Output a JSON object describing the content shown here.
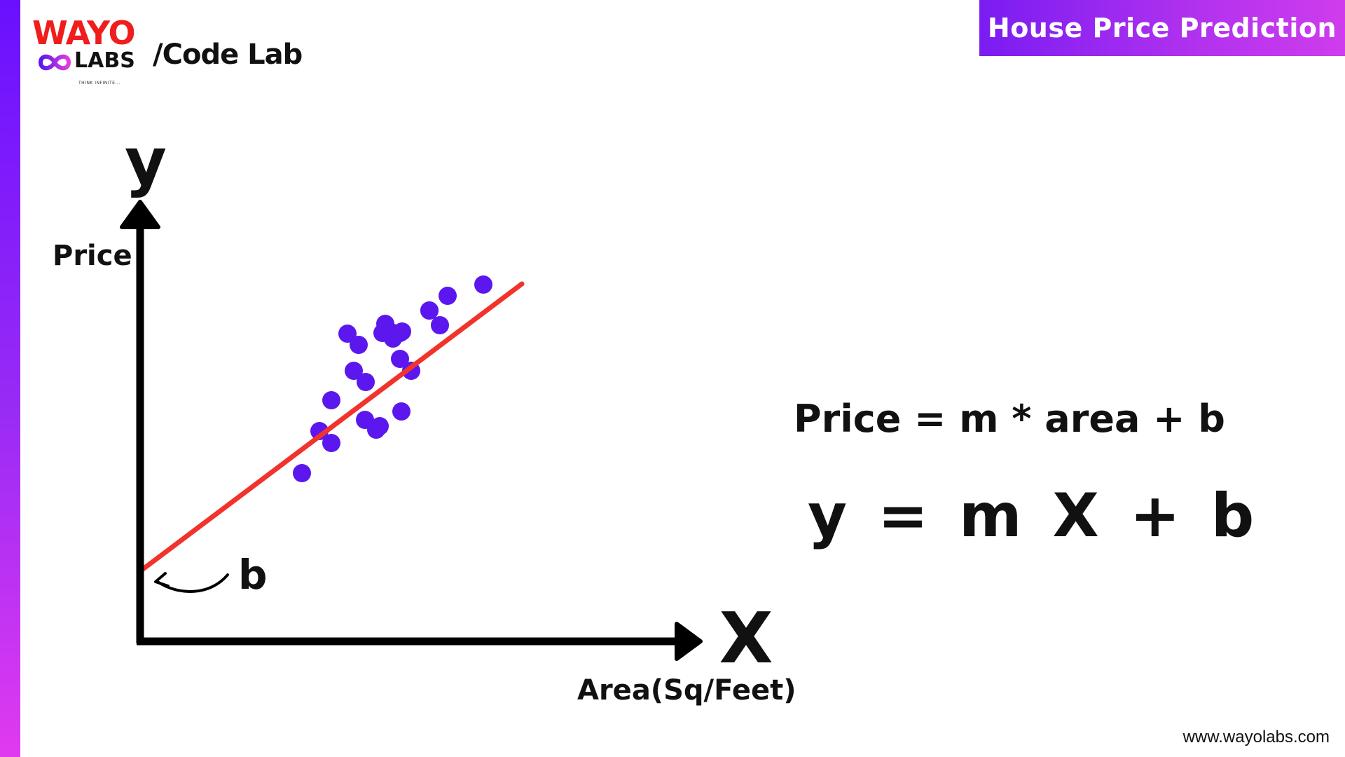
{
  "header": {
    "brand_top": "WAYO",
    "brand_bottom": "LABS",
    "brand_tagline": "THINK INFINITE...",
    "section": "/Code Lab",
    "title": "House Price Prediction"
  },
  "diagram": {
    "y_axis_symbol": "y",
    "y_axis_label": "Price",
    "x_axis_symbol": "X",
    "x_axis_label": "Area(Sq/Feet)",
    "intercept_label": "b",
    "equation_words": "Price = m * area + b",
    "equation_symbols": "y = m X + b",
    "colors": {
      "points": "#5b17ee",
      "line": "#f2332c",
      "axis": "#000000"
    }
  },
  "footer": {
    "url": "www.wayolabs.com"
  },
  "colors": {
    "accent_purple": "#7a1cf2",
    "brand_red": "#f01d1d",
    "banner_text": "#ffffff"
  }
}
